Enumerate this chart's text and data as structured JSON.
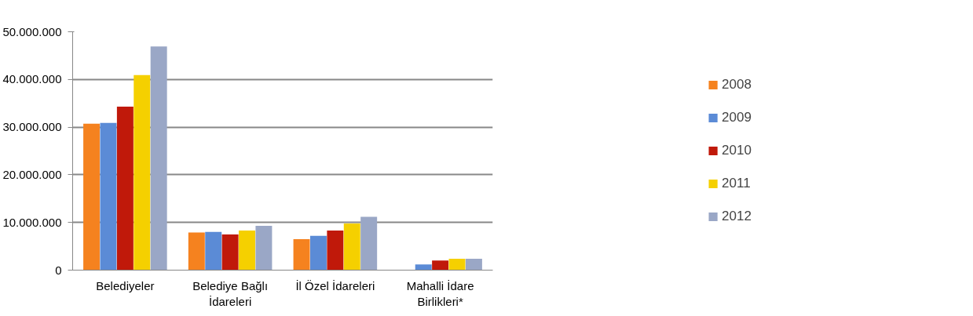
{
  "chart_data": {
    "type": "bar",
    "categories": [
      "Belediyeler",
      "Belediye Bağlı İdareleri",
      "İl Özel İdareleri",
      "Mahalli İdare Birlikleri*"
    ],
    "series": [
      {
        "name": "2008",
        "color": "#f5821f",
        "values": [
          30700000,
          7900000,
          6500000,
          null
        ]
      },
      {
        "name": "2009",
        "color": "#5b8bd6",
        "values": [
          30900000,
          8000000,
          7200000,
          1200000
        ]
      },
      {
        "name": "2010",
        "color": "#c0190a",
        "values": [
          34300000,
          7500000,
          8300000,
          2000000
        ]
      },
      {
        "name": "2011",
        "color": "#f5d000",
        "values": [
          40900000,
          8300000,
          9800000,
          2400000
        ]
      },
      {
        "name": "2012",
        "color": "#9aa7c6",
        "values": [
          46900000,
          9300000,
          11200000,
          2400000
        ]
      }
    ],
    "ylim": [
      0,
      50000000
    ],
    "yticks": [
      {
        "value": 0,
        "label": "0"
      },
      {
        "value": 10000000,
        "label": "10.000.000"
      },
      {
        "value": 20000000,
        "label": "20.000.000"
      },
      {
        "value": 30000000,
        "label": "30.000.000"
      },
      {
        "value": 40000000,
        "label": "40.000.000"
      },
      {
        "value": 50000000,
        "label": "50.000.000"
      }
    ],
    "grid": "y",
    "legend": "right"
  }
}
